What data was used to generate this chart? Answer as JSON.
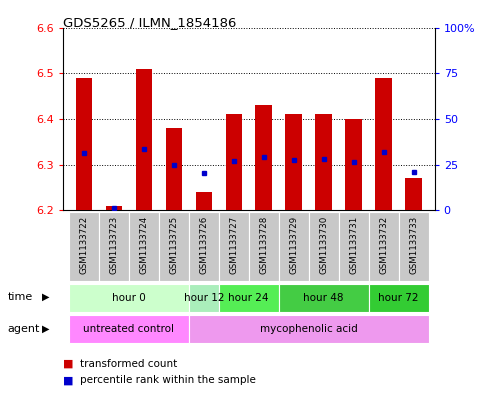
{
  "title": "GDS5265 / ILMN_1854186",
  "samples": [
    "GSM1133722",
    "GSM1133723",
    "GSM1133724",
    "GSM1133725",
    "GSM1133726",
    "GSM1133727",
    "GSM1133728",
    "GSM1133729",
    "GSM1133730",
    "GSM1133731",
    "GSM1133732",
    "GSM1133733"
  ],
  "transformed_count": [
    6.49,
    6.21,
    6.51,
    6.38,
    6.24,
    6.41,
    6.43,
    6.41,
    6.41,
    6.4,
    6.49,
    6.27
  ],
  "percentile_rank_pct": [
    31.5,
    1.0,
    33.5,
    24.5,
    20.5,
    27.0,
    29.0,
    27.5,
    28.0,
    26.5,
    32.0,
    21.0
  ],
  "bar_bottom": 6.2,
  "ylim": [
    6.2,
    6.6
  ],
  "y2lim": [
    0,
    100
  ],
  "yticks": [
    6.2,
    6.3,
    6.4,
    6.5,
    6.6
  ],
  "y2ticks": [
    0,
    25,
    50,
    75,
    100
  ],
  "y2ticklabels": [
    "0",
    "25",
    "50",
    "75",
    "100%"
  ],
  "bar_color": "#cc0000",
  "percentile_color": "#0000cc",
  "bar_width": 0.55,
  "time_groups": [
    {
      "label": "hour 0",
      "start": 0,
      "end": 3,
      "color": "#ccffcc"
    },
    {
      "label": "hour 12",
      "start": 4,
      "end": 4,
      "color": "#aaeebb"
    },
    {
      "label": "hour 24",
      "start": 5,
      "end": 6,
      "color": "#55ee55"
    },
    {
      "label": "hour 48",
      "start": 7,
      "end": 9,
      "color": "#44cc44"
    },
    {
      "label": "hour 72",
      "start": 10,
      "end": 11,
      "color": "#33cc33"
    }
  ],
  "agent_groups": [
    {
      "label": "untreated control",
      "start": 0,
      "end": 3,
      "color": "#ff88ff"
    },
    {
      "label": "mycophenolic acid",
      "start": 4,
      "end": 11,
      "color": "#ee99ee"
    }
  ],
  "bg_color": "#ffffff",
  "sample_bg": "#c8c8c8",
  "grid_color": "#000000",
  "spine_color": "#000000"
}
